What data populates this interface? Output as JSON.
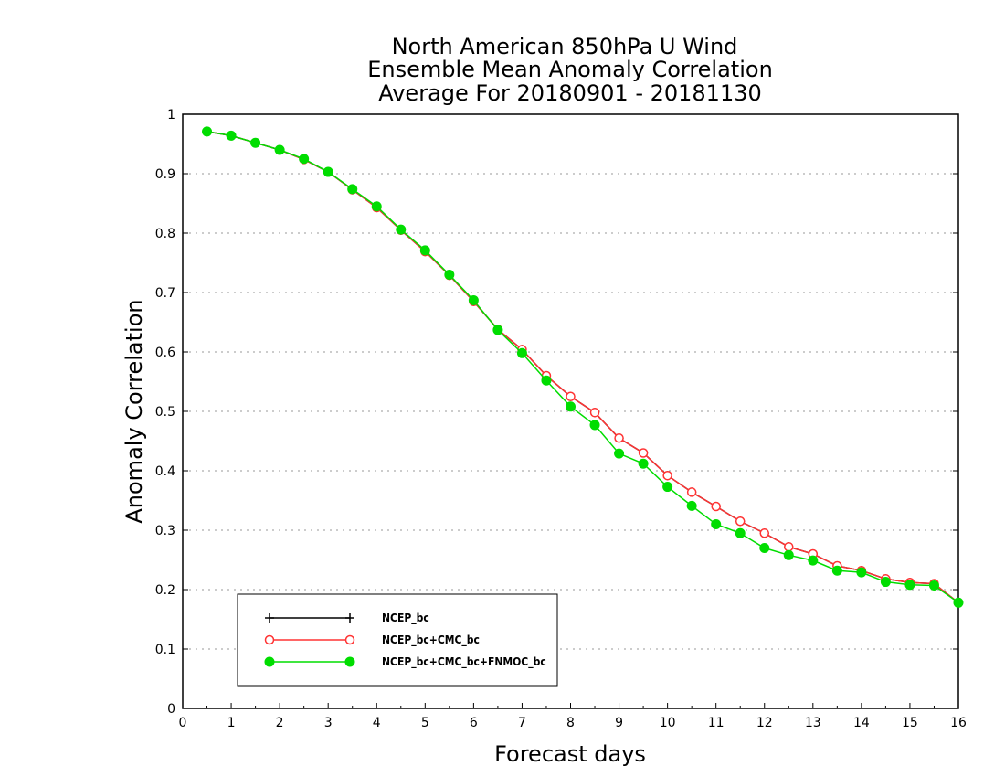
{
  "chart_data": {
    "type": "line",
    "title_lines": [
      "North American 850hPa U Wind",
      "Ensemble Mean Anomaly Correlation",
      "Average For 20180901 - 20181130"
    ],
    "xlabel": "Forecast days",
    "ylabel": "Anomaly Correlation",
    "xlim": [
      0,
      16
    ],
    "ylim": [
      0,
      1
    ],
    "x_ticks": [
      "0",
      "1",
      "2",
      "3",
      "4",
      "5",
      "6",
      "7",
      "8",
      "9",
      "10",
      "11",
      "12",
      "13",
      "14",
      "15",
      "16"
    ],
    "y_ticks": [
      "0",
      "0.1",
      "0.2",
      "0.3",
      "0.4",
      "0.5",
      "0.6",
      "0.7",
      "0.8",
      "0.9",
      "1"
    ],
    "grid": true,
    "legend_position": "bottom-left",
    "x": [
      0.5,
      1,
      1.5,
      2,
      2.5,
      3,
      3.5,
      4,
      4.5,
      5,
      5.5,
      6,
      6.5,
      7,
      7.5,
      8,
      8.5,
      9,
      9.5,
      10,
      10.5,
      11,
      11.5,
      12,
      12.5,
      13,
      13.5,
      14,
      14.5,
      15,
      15.5,
      16
    ],
    "series": [
      {
        "name": "NCEP_bc",
        "color": "#000000",
        "marker": "plus",
        "values": [
          0.971,
          0.964,
          0.952,
          0.94,
          0.924,
          0.903,
          0.873,
          0.843,
          0.805,
          0.769,
          0.729,
          0.685,
          0.638,
          0.604,
          0.56,
          0.525,
          0.498,
          0.455,
          0.43,
          0.392,
          0.364,
          0.34,
          0.315,
          0.295,
          0.272,
          0.26,
          0.24,
          0.232,
          0.218,
          0.212,
          0.21,
          0.178
        ]
      },
      {
        "name": "NCEP_bc+CMC_bc",
        "color": "#ff3333",
        "marker": "open-circle",
        "values": [
          0.971,
          0.964,
          0.952,
          0.94,
          0.924,
          0.903,
          0.873,
          0.843,
          0.805,
          0.769,
          0.729,
          0.685,
          0.638,
          0.604,
          0.56,
          0.525,
          0.498,
          0.455,
          0.43,
          0.392,
          0.364,
          0.34,
          0.315,
          0.295,
          0.272,
          0.26,
          0.24,
          0.232,
          0.218,
          0.212,
          0.21,
          0.178
        ]
      },
      {
        "name": "NCEP_bc+CMC_bc+FNMOC_bc",
        "color": "#00dd00",
        "marker": "filled-circle",
        "values": [
          0.971,
          0.964,
          0.952,
          0.94,
          0.925,
          0.903,
          0.874,
          0.845,
          0.806,
          0.771,
          0.73,
          0.687,
          0.637,
          0.598,
          0.552,
          0.508,
          0.477,
          0.429,
          0.412,
          0.373,
          0.341,
          0.31,
          0.295,
          0.27,
          0.258,
          0.249,
          0.232,
          0.229,
          0.213,
          0.208,
          0.207,
          0.178
        ]
      }
    ]
  }
}
